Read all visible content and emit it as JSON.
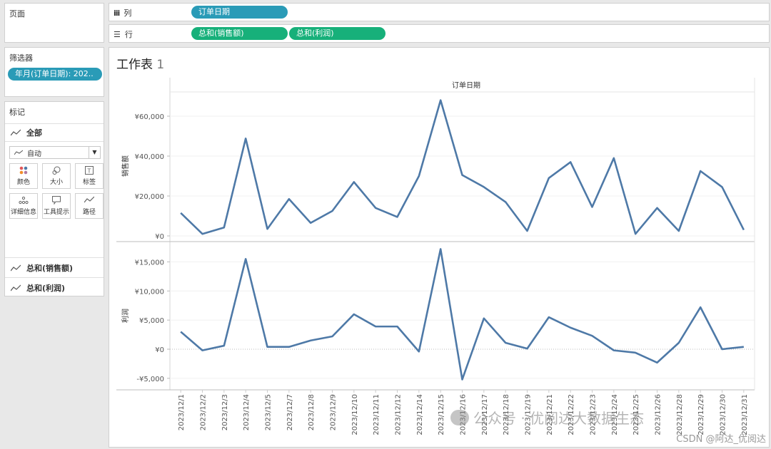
{
  "shelves": {
    "pages_title": "页面",
    "columns_label": "列",
    "rows_label": "行",
    "columns_pill": "订单日期",
    "rows_pills": [
      "总和(销售额)",
      "总和(利润)"
    ]
  },
  "filters": {
    "title": "筛选器",
    "pill": "年月(订单日期): 202.."
  },
  "marks": {
    "title": "标记",
    "all_label": "全部",
    "type_select": "自动",
    "buttons": [
      {
        "label": "颜色",
        "icon": "color-dots-icon"
      },
      {
        "label": "大小",
        "icon": "size-icon"
      },
      {
        "label": "标签",
        "icon": "label-icon"
      },
      {
        "label": "详细信息",
        "icon": "detail-icon"
      },
      {
        "label": "工具提示",
        "icon": "tooltip-icon"
      },
      {
        "label": "路径",
        "icon": "path-icon"
      }
    ],
    "measures": [
      "总和(销售额)",
      "总和(利润)"
    ]
  },
  "worksheet": {
    "title": "工作表",
    "title_number": "1",
    "header": "订单日期"
  },
  "colors": {
    "line": "#4e79a7",
    "blue_pill": "#2a9bb7",
    "green_pill": "#17b07a"
  },
  "chart_data": {
    "type": "line",
    "x": [
      "2023/12/1",
      "2023/12/2",
      "2023/12/3",
      "2023/12/4",
      "2023/12/5",
      "2023/12/7",
      "2023/12/8",
      "2023/12/9",
      "2023/12/10",
      "2023/12/11",
      "2023/12/12",
      "2023/12/14",
      "2023/12/15",
      "2023/12/16",
      "2023/12/17",
      "2023/12/18",
      "2023/12/19",
      "2023/12/21",
      "2023/12/22",
      "2023/12/23",
      "2023/12/24",
      "2023/12/25",
      "2023/12/26",
      "2023/12/28",
      "2023/12/29",
      "2023/12/30",
      "2023/12/31"
    ],
    "series": [
      {
        "name": "销售额",
        "values": [
          11500,
          1000,
          4200,
          48800,
          3500,
          18500,
          6500,
          12500,
          27000,
          14000,
          9500,
          30000,
          68000,
          30500,
          24500,
          17000,
          2500,
          29000,
          37000,
          14500,
          39000,
          1000,
          14000,
          2500,
          32500,
          24500,
          3000
        ],
        "ylim": [
          0,
          70000
        ],
        "yticks": [
          0,
          20000,
          40000,
          60000
        ],
        "ytick_labels": [
          "¥0",
          "¥20,000",
          "¥40,000",
          "¥60,000"
        ]
      },
      {
        "name": "利润",
        "values": [
          3000,
          -200,
          600,
          15500,
          400,
          400,
          1500,
          2200,
          6000,
          3900,
          3900,
          -400,
          17200,
          -5200,
          5300,
          1100,
          100,
          5500,
          3700,
          2300,
          -200,
          -600,
          -2300,
          1100,
          7200,
          0,
          400
        ],
        "ylim": [
          -6000,
          17500
        ],
        "yticks": [
          -5000,
          0,
          5000,
          10000,
          15000
        ],
        "ytick_labels": [
          "-¥5,000",
          "¥0",
          "¥5,000",
          "¥10,000",
          "¥15,000"
        ]
      }
    ]
  },
  "watermark": {
    "wechat": "公众号 · 优阅达大数据生态",
    "csdn": "CSDN @阿达_优阅达"
  }
}
